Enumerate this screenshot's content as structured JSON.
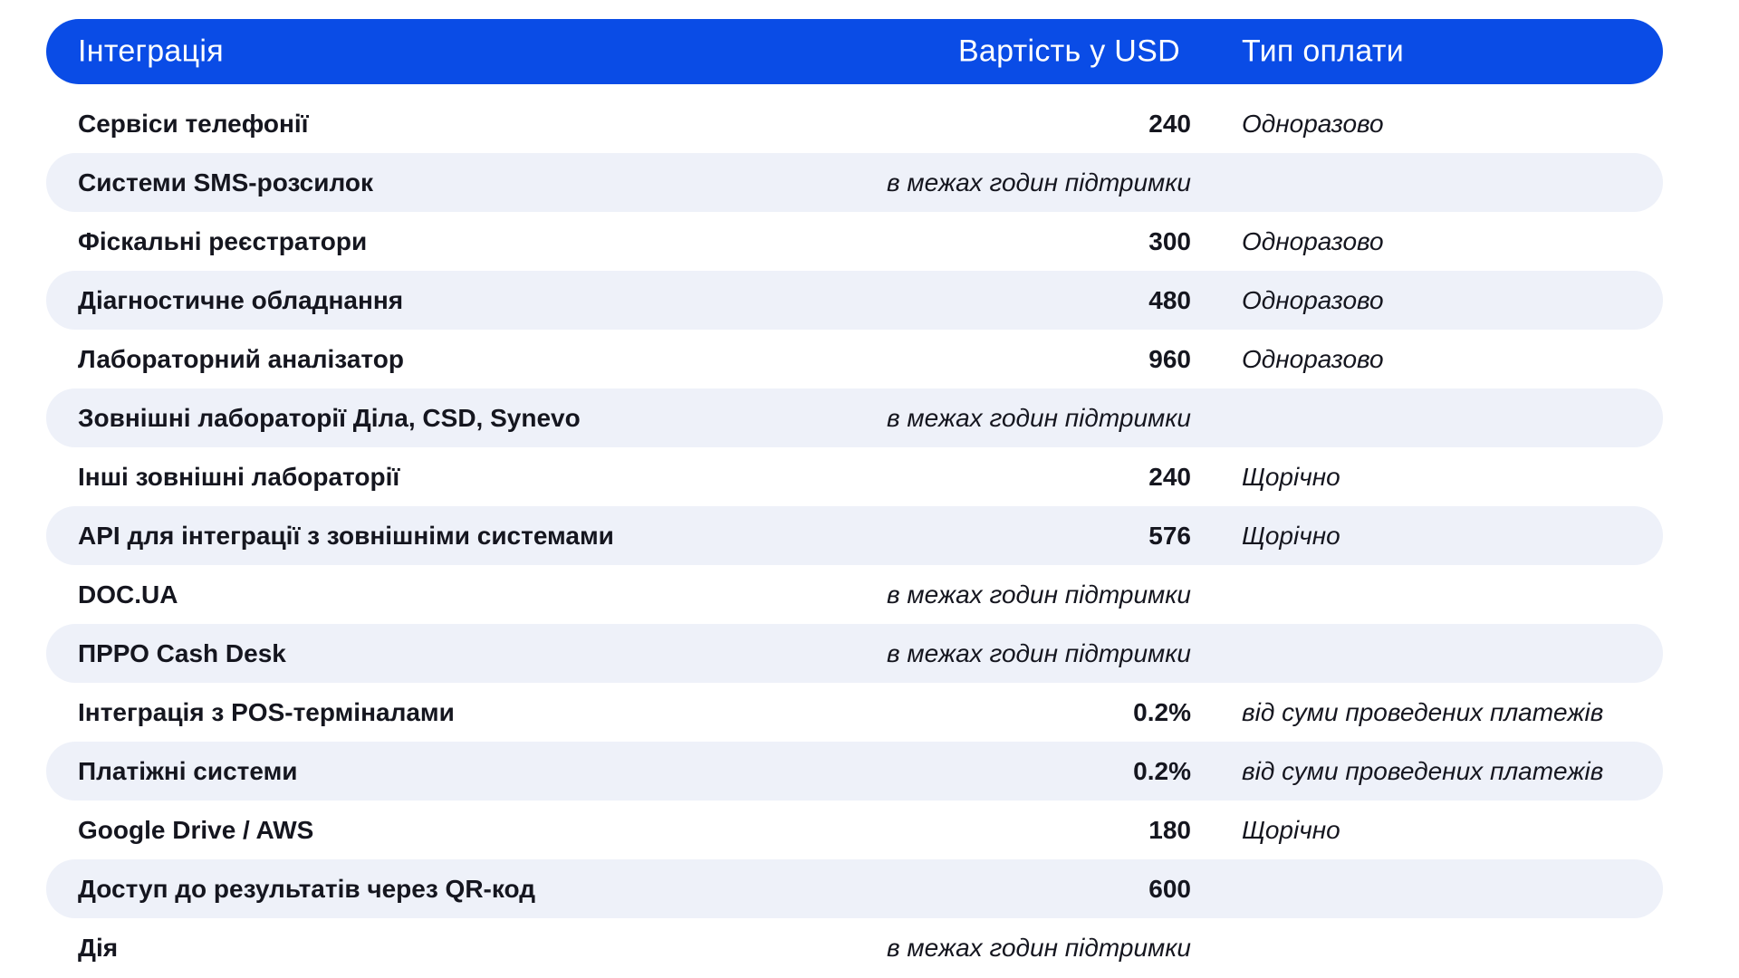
{
  "header": {
    "integration": "Інтеграція",
    "cost": "Вартість у USD",
    "payment_type": "Тип оплати"
  },
  "rows": [
    {
      "name": "Сервіси телефонії",
      "cost": "240",
      "payment": "Одноразово"
    },
    {
      "name": "Системи SMS-розсилок",
      "cost": "в межах годин підтримки",
      "payment": ""
    },
    {
      "name": "Фіскальні реєстратори",
      "cost": "300",
      "payment": "Одноразово"
    },
    {
      "name": "Діагностичне обладнання",
      "cost": "480",
      "payment": "Одноразово"
    },
    {
      "name": "Лабораторний аналізатор",
      "cost": "960",
      "payment": "Одноразово"
    },
    {
      "name": "Зовнішні лабораторії Діла, CSD, Synevo",
      "cost": "в межах годин підтримки",
      "payment": ""
    },
    {
      "name": "Інші зовнішні лабораторії",
      "cost": "240",
      "payment": "Щорічно"
    },
    {
      "name": "API для інтеграції з зовнішніми системами",
      "cost": "576",
      "payment": "Щорічно"
    },
    {
      "name": "DOC.UA",
      "cost": "в межах годин підтримки",
      "payment": ""
    },
    {
      "name": "ПРРО Cash Desk",
      "cost": "в межах годин підтримки",
      "payment": ""
    },
    {
      "name": "Інтеграція з POS-терміналами",
      "cost": "0.2%",
      "payment": "від суми проведених платежів"
    },
    {
      "name": "Платіжні системи",
      "cost": "0.2%",
      "payment": "від суми проведених платежів"
    },
    {
      "name": "Google Drive / AWS",
      "cost": "180",
      "payment": "Щорічно"
    },
    {
      "name": "Доступ до результатів через QR-код",
      "cost": "600",
      "payment": ""
    },
    {
      "name": "Дія",
      "cost": "в межах годин підтримки",
      "payment": ""
    }
  ],
  "colors": {
    "header_bg": "#0a4ce6",
    "header_text": "#ffffff",
    "row_shade": "#eef1f9",
    "text": "#15161f"
  }
}
